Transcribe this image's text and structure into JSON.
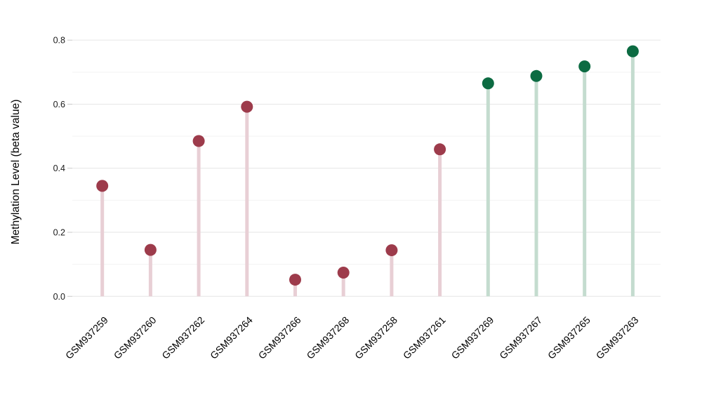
{
  "chart_data": {
    "type": "scatter",
    "variant": "lollipop",
    "title": "",
    "xlabel": "",
    "ylabel": "Methylation Level (beta value)",
    "ylim": [
      0,
      0.8
    ],
    "grid": "horizontal",
    "legend_position": "none",
    "x_tick_rotation_deg": -45,
    "yticks": [
      {
        "value": 0.0,
        "label": "0.0"
      },
      {
        "value": 0.2,
        "label": "0.2"
      },
      {
        "value": 0.4,
        "label": "0.4"
      },
      {
        "value": 0.6,
        "label": "0.6"
      },
      {
        "value": 0.8,
        "label": "0.8"
      }
    ],
    "minor_gridline_step": 0.1,
    "points": [
      {
        "sample": "GSM937259",
        "value": 0.345,
        "group": "maroon"
      },
      {
        "sample": "GSM937260",
        "value": 0.145,
        "group": "maroon"
      },
      {
        "sample": "GSM937262",
        "value": 0.485,
        "group": "maroon"
      },
      {
        "sample": "GSM937264",
        "value": 0.592,
        "group": "maroon"
      },
      {
        "sample": "GSM937266",
        "value": 0.052,
        "group": "maroon"
      },
      {
        "sample": "GSM937268",
        "value": 0.074,
        "group": "maroon"
      },
      {
        "sample": "GSM937258",
        "value": 0.144,
        "group": "maroon"
      },
      {
        "sample": "GSM937261",
        "value": 0.459,
        "group": "maroon"
      },
      {
        "sample": "GSM937269",
        "value": 0.665,
        "group": "green"
      },
      {
        "sample": "GSM937267",
        "value": 0.688,
        "group": "green"
      },
      {
        "sample": "GSM937265",
        "value": 0.718,
        "group": "green"
      },
      {
        "sample": "GSM937263",
        "value": 0.765,
        "group": "green"
      }
    ],
    "colors": {
      "maroon_dot": "#9d3b4b",
      "maroon_stem": "#e8cfd5",
      "green_dot": "#0c6b42",
      "green_stem": "#c4dccf",
      "grid_major": "#e6e6e6",
      "grid_minor": "#f3f3f3",
      "tick_mark": "#c9c9c9",
      "tick_label": "#1a1a1a",
      "axis_label": "#000000",
      "background": "#ffffff"
    }
  }
}
